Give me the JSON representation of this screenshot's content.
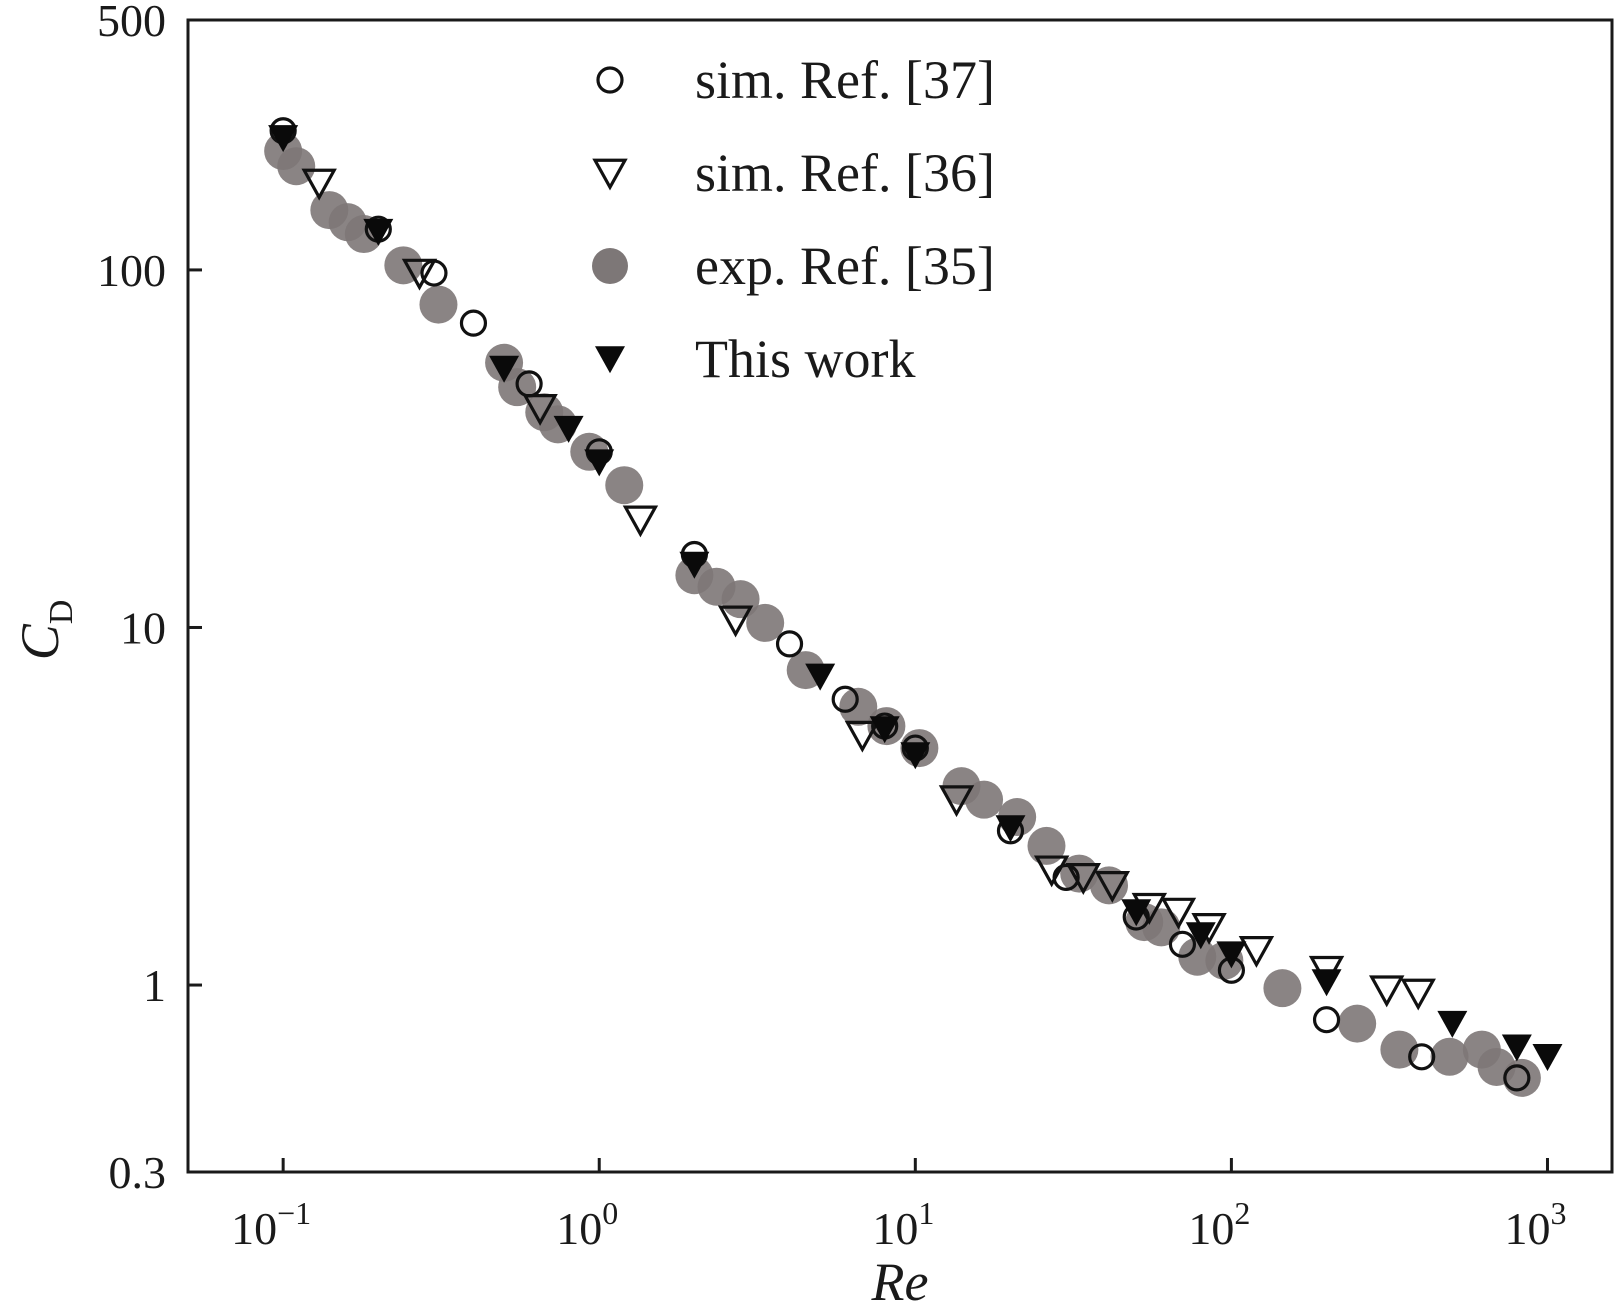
{
  "chart_data": {
    "type": "scatter",
    "title": "",
    "xlabel": "Re",
    "ylabel_main": "C",
    "ylabel_sub": "D",
    "xscale": "log",
    "yscale": "log",
    "xlim": [
      0.05,
      1600
    ],
    "ylim": [
      0.3,
      500
    ],
    "x_ticks": [
      {
        "value": 0.1,
        "base": "10",
        "exp": "−1"
      },
      {
        "value": 1,
        "base": "10",
        "exp": "0"
      },
      {
        "value": 10,
        "base": "10",
        "exp": "1"
      },
      {
        "value": 100,
        "base": "10",
        "exp": "2"
      },
      {
        "value": 1000,
        "base": "10",
        "exp": "3"
      }
    ],
    "y_ticks": [
      {
        "value": 0.3,
        "label": "0.3"
      },
      {
        "value": 1,
        "label": "1"
      },
      {
        "value": 10,
        "label": "10"
      },
      {
        "value": 100,
        "label": "100"
      },
      {
        "value": 500,
        "label": "500"
      }
    ],
    "legend_position": "top-center",
    "series": [
      {
        "name": "sim. Ref. [37]",
        "marker": "circle-open",
        "color": "#111111",
        "points": [
          [
            0.1,
            245
          ],
          [
            0.2,
            130
          ],
          [
            0.3,
            98
          ],
          [
            0.4,
            71
          ],
          [
            0.6,
            48
          ],
          [
            1.0,
            31
          ],
          [
            2.0,
            16
          ],
          [
            4.0,
            9
          ],
          [
            6.0,
            6.3
          ],
          [
            8.0,
            5.3
          ],
          [
            10,
            4.6
          ],
          [
            20,
            2.7
          ],
          [
            30,
            2.0
          ],
          [
            50,
            1.55
          ],
          [
            70,
            1.3
          ],
          [
            100,
            1.1
          ],
          [
            200,
            0.8
          ],
          [
            400,
            0.63
          ],
          [
            800,
            0.55
          ]
        ]
      },
      {
        "name": "sim. Ref. [36]",
        "marker": "triangle-down-open",
        "color": "#111111",
        "points": [
          [
            0.13,
            175
          ],
          [
            0.27,
            98
          ],
          [
            0.65,
            41
          ],
          [
            1.35,
            20
          ],
          [
            2.7,
            10.5
          ],
          [
            6.8,
            5.0
          ],
          [
            13.5,
            3.3
          ],
          [
            27,
            2.1
          ],
          [
            34,
            2.0
          ],
          [
            42,
            1.9
          ],
          [
            55,
            1.65
          ],
          [
            68,
            1.6
          ],
          [
            85,
            1.45
          ],
          [
            120,
            1.25
          ],
          [
            200,
            1.1
          ],
          [
            310,
            0.97
          ],
          [
            390,
            0.95
          ]
        ]
      },
      {
        "name": "exp. Ref. [35]",
        "marker": "circle-filled",
        "color": "#7d7777",
        "points": [
          [
            0.1,
            215
          ],
          [
            0.11,
            195
          ],
          [
            0.14,
            147
          ],
          [
            0.16,
            136
          ],
          [
            0.18,
            126
          ],
          [
            0.24,
            103
          ],
          [
            0.31,
            80
          ],
          [
            0.5,
            55
          ],
          [
            0.55,
            47
          ],
          [
            0.67,
            40
          ],
          [
            0.74,
            37
          ],
          [
            0.93,
            31
          ],
          [
            1.2,
            25
          ],
          [
            2.0,
            14
          ],
          [
            2.35,
            13
          ],
          [
            2.8,
            12
          ],
          [
            3.35,
            10.3
          ],
          [
            4.5,
            7.6
          ],
          [
            6.6,
            6.0
          ],
          [
            8.1,
            5.3
          ],
          [
            10.3,
            4.6
          ],
          [
            14,
            3.6
          ],
          [
            16.5,
            3.3
          ],
          [
            21,
            2.95
          ],
          [
            26,
            2.45
          ],
          [
            33,
            2.05
          ],
          [
            41,
            1.9
          ],
          [
            53,
            1.5
          ],
          [
            60,
            1.45
          ],
          [
            78,
            1.2
          ],
          [
            95,
            1.17
          ],
          [
            145,
            0.98
          ],
          [
            250,
            0.78
          ],
          [
            340,
            0.66
          ],
          [
            490,
            0.63
          ],
          [
            620,
            0.66
          ],
          [
            690,
            0.59
          ],
          [
            830,
            0.55
          ]
        ]
      },
      {
        "name": "This work",
        "marker": "triangle-down-filled",
        "color": "#0a0a0a",
        "points": [
          [
            0.1,
            234
          ],
          [
            0.2,
            128
          ],
          [
            0.5,
            53
          ],
          [
            0.8,
            36
          ],
          [
            1.0,
            29
          ],
          [
            2.0,
            15
          ],
          [
            5.0,
            7.3
          ],
          [
            8.0,
            5.2
          ],
          [
            10,
            4.4
          ],
          [
            20,
            2.75
          ],
          [
            50,
            1.6
          ],
          [
            80,
            1.38
          ],
          [
            100,
            1.22
          ],
          [
            200,
            1.02
          ],
          [
            500,
            0.78
          ],
          [
            800,
            0.67
          ],
          [
            1000,
            0.63
          ]
        ]
      }
    ]
  }
}
